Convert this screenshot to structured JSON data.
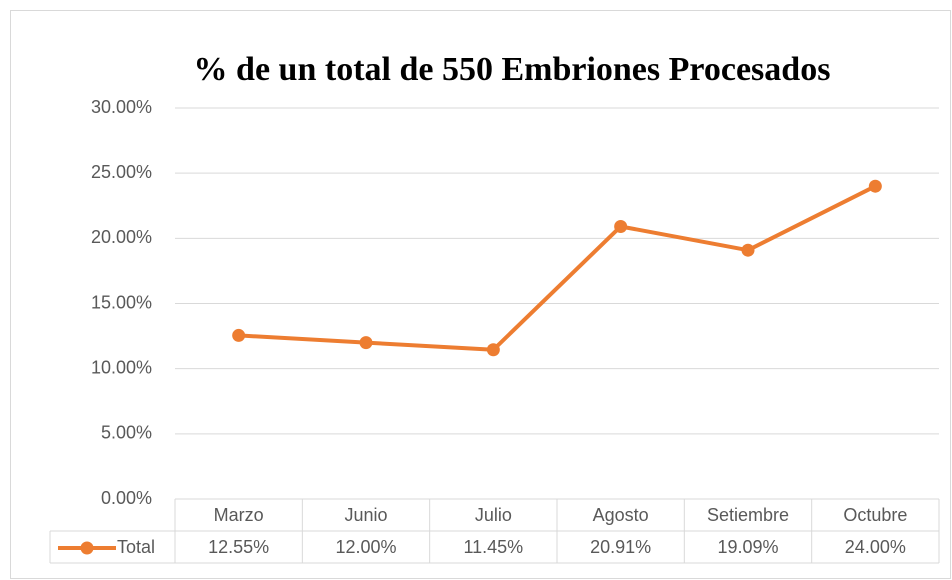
{
  "chart_data": {
    "type": "line",
    "title": "% de un total de 550 Embriones Procesados",
    "categories": [
      "Marzo",
      "Junio",
      "Julio",
      "Agosto",
      "Setiembre",
      "Octubre"
    ],
    "series": [
      {
        "name": "Total",
        "color": "#ed7d31",
        "values": [
          12.55,
          12,
          11.45,
          20.91,
          19.09,
          24
        ],
        "value_labels": [
          "12.55%",
          "12.00%",
          "11.45%",
          "20.91%",
          "19.09%",
          "24.00%"
        ]
      }
    ],
    "ylim": [
      0,
      30
    ],
    "yticks": [
      {
        "value": 0,
        "label": "0.00%"
      },
      {
        "value": 5,
        "label": "5.00%"
      },
      {
        "value": 10,
        "label": "10.00%"
      },
      {
        "value": 15,
        "label": "15.00%"
      },
      {
        "value": 20,
        "label": "20.00%"
      },
      {
        "value": 25,
        "label": "25.00%"
      },
      {
        "value": 30,
        "label": "30.00%"
      }
    ],
    "grid": true,
    "data_table": true
  }
}
